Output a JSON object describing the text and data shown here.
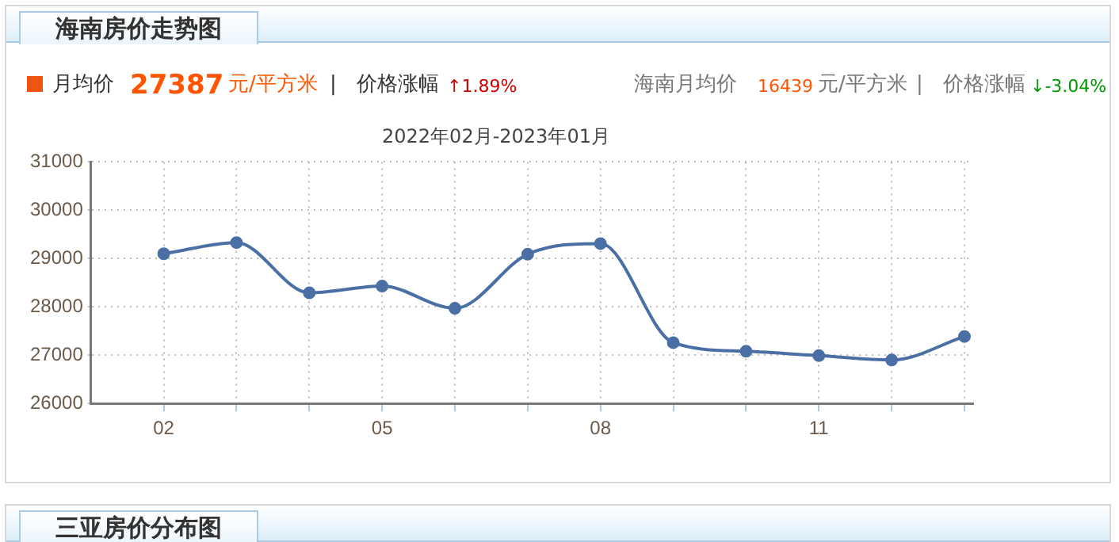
{
  "chart_data": {
    "type": "line",
    "title": "海南房价走势图",
    "subtitle": "2022年02月-2023年01月",
    "categories": [
      "02",
      null,
      null,
      "05",
      null,
      null,
      "08",
      null,
      null,
      "11",
      null,
      null
    ],
    "series": [
      {
        "color": "#4a6fa5",
        "values": [
          29100,
          29330,
          28290,
          28430,
          27970,
          29090,
          29310,
          27260,
          27080,
          26990,
          26900,
          27387
        ]
      }
    ],
    "ylim": [
      26000,
      31000
    ],
    "yticks": [
      26000,
      27000,
      28000,
      29000,
      30000,
      31000
    ],
    "grid": true,
    "legend": false,
    "marker": "circle",
    "line_style": "solid",
    "annotations": [
      "月均价",
      "27387",
      "元/平方米",
      "|",
      "价格涨幅",
      "↑1.89%",
      "海南月均价",
      "16439",
      "元/平方米",
      "|",
      "价格涨幅",
      "↓-3.04%",
      "三亚房价分布图"
    ]
  }
}
